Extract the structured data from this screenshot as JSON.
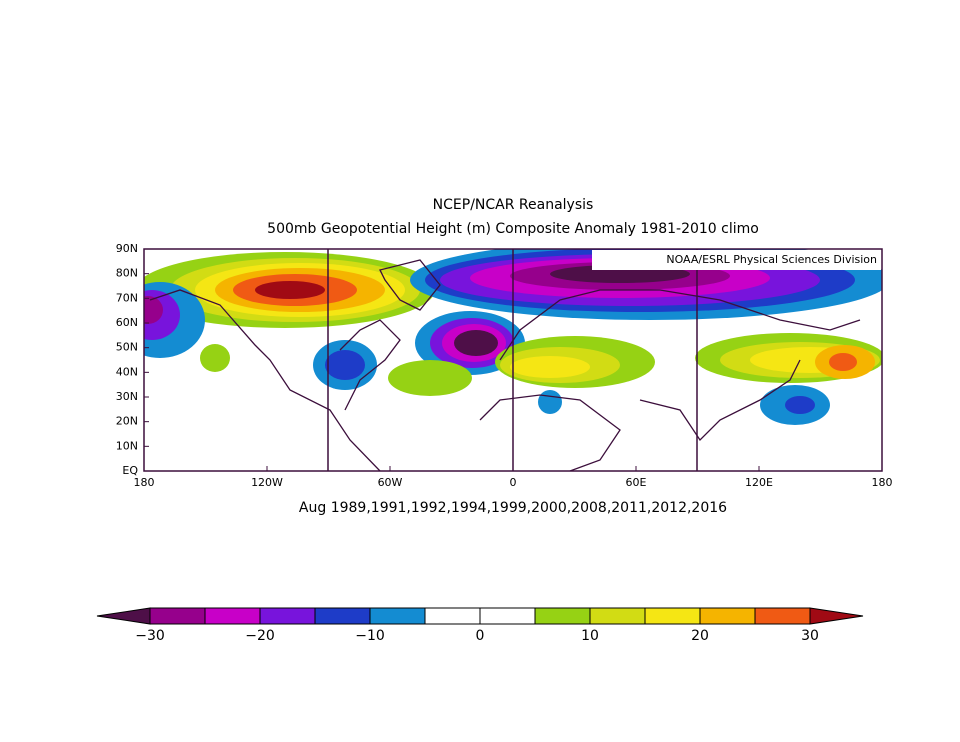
{
  "header": {
    "title": "NCEP/NCAR Reanalysis",
    "subtitle": "500mb Geopotential Height (m) Composite Anomaly 1981-2010 climo"
  },
  "map": {
    "credit": "NOAA/ESRL Physical Sciences Division",
    "lat_labels": [
      "90N",
      "80N",
      "70N",
      "60N",
      "50N",
      "40N",
      "30N",
      "20N",
      "10N",
      "EQ"
    ],
    "lon_labels": [
      "180",
      "120W",
      "60W",
      "0",
      "60E",
      "120E",
      "180"
    ],
    "caption": "Aug 1989,1991,1992,1994,1999,2000,2008,2011,2012,2016"
  },
  "colorbar": {
    "labels": [
      "−30",
      "−20",
      "−10",
      "0",
      "10",
      "20",
      "30"
    ],
    "under_color": "#4e0f48",
    "over_color": "#a00a14",
    "colors": [
      "#96008c",
      "#c800c8",
      "#7814dc",
      "#1e3cc8",
      "#148cd2",
      "#ffffff",
      "#ffffff",
      "#96d214",
      "#d2dc14",
      "#f5e614",
      "#f5b400",
      "#f05a14"
    ]
  }
}
